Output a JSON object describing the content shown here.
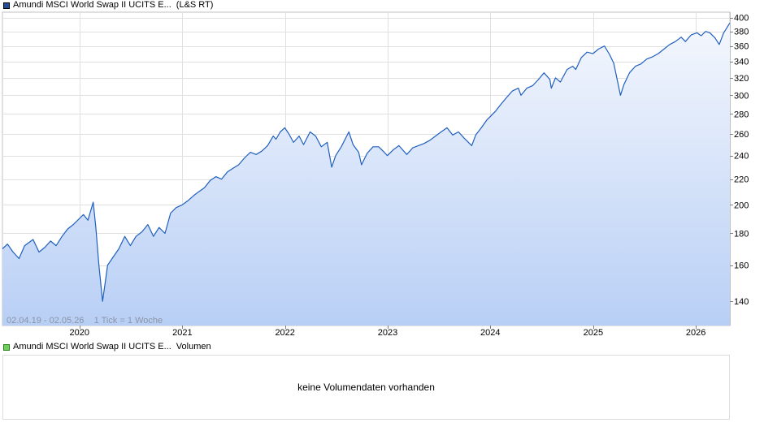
{
  "legend_price": {
    "label": "Amundi MSCI World Swap II UCITS E...",
    "source": "(L&S RT)",
    "color": "#1f4e9c"
  },
  "legend_volume": {
    "label": "Amundi MSCI World Swap II UCITS E...",
    "source": "Volumen",
    "color": "#6fcf5a"
  },
  "info_text": "02.04.19 - 02.05.26    1 Tick = 1 Woche",
  "volume_message": "keine Volumendaten vorhanden",
  "colors": {
    "line": "#1f5fbf",
    "fill_top": "#f4f7fd",
    "fill_bottom": "#b8cff5",
    "grid": "#e0e0e0",
    "axis": "#c0c0c0"
  },
  "chart_data": {
    "type": "area",
    "title": "",
    "xlabel": "",
    "ylabel": "",
    "y_scale": "log",
    "ylim": [
      128,
      408
    ],
    "xlim": [
      "2019-04-02",
      "2026-05-02"
    ],
    "x_ticks": [
      "2020",
      "2021",
      "2022",
      "2023",
      "2024",
      "2025",
      "2026"
    ],
    "x_tick_dates": [
      "2020-01-01",
      "2021-01-01",
      "2022-01-01",
      "2023-01-01",
      "2024-01-01",
      "2025-01-01",
      "2026-01-01"
    ],
    "y_ticks": [
      140,
      160,
      180,
      200,
      220,
      240,
      260,
      280,
      300,
      320,
      340,
      360,
      380,
      400
    ],
    "grid": true,
    "series": [
      {
        "name": "Amundi MSCI World Swap II UCITS E...",
        "points": [
          [
            "2019-04-02",
            170
          ],
          [
            "2019-04-20",
            173
          ],
          [
            "2019-05-10",
            168
          ],
          [
            "2019-05-31",
            164
          ],
          [
            "2019-06-20",
            172
          ],
          [
            "2019-07-20",
            176
          ],
          [
            "2019-08-10",
            168
          ],
          [
            "2019-08-31",
            171
          ],
          [
            "2019-09-20",
            175
          ],
          [
            "2019-10-10",
            172
          ],
          [
            "2019-10-31",
            178
          ],
          [
            "2019-11-20",
            183
          ],
          [
            "2019-12-10",
            186
          ],
          [
            "2019-12-31",
            190
          ],
          [
            "2020-01-15",
            193
          ],
          [
            "2020-01-31",
            189
          ],
          [
            "2020-02-19",
            202
          ],
          [
            "2020-02-28",
            184
          ],
          [
            "2020-03-10",
            160
          ],
          [
            "2020-03-23",
            140
          ],
          [
            "2020-04-10",
            160
          ],
          [
            "2020-04-30",
            165
          ],
          [
            "2020-05-20",
            170
          ],
          [
            "2020-06-10",
            178
          ],
          [
            "2020-06-30",
            172
          ],
          [
            "2020-07-20",
            178
          ],
          [
            "2020-08-10",
            181
          ],
          [
            "2020-08-31",
            186
          ],
          [
            "2020-09-20",
            178
          ],
          [
            "2020-10-10",
            184
          ],
          [
            "2020-10-31",
            180
          ],
          [
            "2020-11-20",
            194
          ],
          [
            "2020-12-10",
            198
          ],
          [
            "2020-12-31",
            200
          ],
          [
            "2021-01-20",
            203
          ],
          [
            "2021-02-10",
            207
          ],
          [
            "2021-02-28",
            210
          ],
          [
            "2021-03-20",
            213
          ],
          [
            "2021-04-10",
            219
          ],
          [
            "2021-04-30",
            222
          ],
          [
            "2021-05-20",
            220
          ],
          [
            "2021-06-10",
            226
          ],
          [
            "2021-06-30",
            229
          ],
          [
            "2021-07-20",
            232
          ],
          [
            "2021-08-10",
            238
          ],
          [
            "2021-08-31",
            243
          ],
          [
            "2021-09-20",
            241
          ],
          [
            "2021-10-10",
            244
          ],
          [
            "2021-10-31",
            249
          ],
          [
            "2021-11-20",
            258
          ],
          [
            "2021-11-30",
            255
          ],
          [
            "2021-12-15",
            262
          ],
          [
            "2021-12-31",
            266
          ],
          [
            "2022-01-15",
            260
          ],
          [
            "2022-01-31",
            252
          ],
          [
            "2022-02-20",
            258
          ],
          [
            "2022-03-08",
            250
          ],
          [
            "2022-03-31",
            262
          ],
          [
            "2022-04-20",
            258
          ],
          [
            "2022-05-10",
            248
          ],
          [
            "2022-05-31",
            252
          ],
          [
            "2022-06-16",
            230
          ],
          [
            "2022-06-30",
            240
          ],
          [
            "2022-07-20",
            248
          ],
          [
            "2022-08-16",
            262
          ],
          [
            "2022-08-31",
            250
          ],
          [
            "2022-09-20",
            243
          ],
          [
            "2022-09-30",
            232
          ],
          [
            "2022-10-20",
            242
          ],
          [
            "2022-11-10",
            248
          ],
          [
            "2022-11-30",
            248
          ],
          [
            "2022-12-20",
            243
          ],
          [
            "2022-12-31",
            240
          ],
          [
            "2023-01-20",
            245
          ],
          [
            "2023-02-10",
            249
          ],
          [
            "2023-03-10",
            241
          ],
          [
            "2023-03-31",
            247
          ],
          [
            "2023-04-20",
            249
          ],
          [
            "2023-05-10",
            251
          ],
          [
            "2023-05-31",
            254
          ],
          [
            "2023-06-20",
            258
          ],
          [
            "2023-07-10",
            262
          ],
          [
            "2023-07-31",
            266
          ],
          [
            "2023-08-20",
            259
          ],
          [
            "2023-09-10",
            262
          ],
          [
            "2023-09-30",
            256
          ],
          [
            "2023-10-27",
            249
          ],
          [
            "2023-11-10",
            259
          ],
          [
            "2023-11-30",
            266
          ],
          [
            "2023-12-20",
            274
          ],
          [
            "2023-12-31",
            277
          ],
          [
            "2024-01-20",
            283
          ],
          [
            "2024-02-10",
            291
          ],
          [
            "2024-02-29",
            298
          ],
          [
            "2024-03-20",
            305
          ],
          [
            "2024-04-10",
            308
          ],
          [
            "2024-04-19",
            300
          ],
          [
            "2024-05-10",
            308
          ],
          [
            "2024-05-31",
            311
          ],
          [
            "2024-06-20",
            318
          ],
          [
            "2024-07-10",
            326
          ],
          [
            "2024-07-31",
            318
          ],
          [
            "2024-08-05",
            308
          ],
          [
            "2024-08-20",
            320
          ],
          [
            "2024-09-06",
            315
          ],
          [
            "2024-09-30",
            330
          ],
          [
            "2024-10-20",
            334
          ],
          [
            "2024-10-31",
            330
          ],
          [
            "2024-11-20",
            345
          ],
          [
            "2024-12-10",
            352
          ],
          [
            "2024-12-31",
            350
          ],
          [
            "2025-01-20",
            356
          ],
          [
            "2025-02-10",
            360
          ],
          [
            "2025-02-28",
            349
          ],
          [
            "2025-03-15",
            338
          ],
          [
            "2025-04-08",
            300
          ],
          [
            "2025-04-20",
            312
          ],
          [
            "2025-05-10",
            326
          ],
          [
            "2025-05-31",
            334
          ],
          [
            "2025-06-20",
            337
          ],
          [
            "2025-07-10",
            343
          ],
          [
            "2025-07-31",
            346
          ],
          [
            "2025-08-20",
            350
          ],
          [
            "2025-09-10",
            356
          ],
          [
            "2025-09-30",
            362
          ],
          [
            "2025-10-20",
            366
          ],
          [
            "2025-11-10",
            372
          ],
          [
            "2025-11-25",
            366
          ],
          [
            "2025-12-15",
            375
          ],
          [
            "2026-01-05",
            378
          ],
          [
            "2026-01-20",
            374
          ],
          [
            "2026-02-05",
            380
          ],
          [
            "2026-02-20",
            378
          ],
          [
            "2026-03-10",
            371
          ],
          [
            "2026-03-25",
            362
          ],
          [
            "2026-04-10",
            378
          ],
          [
            "2026-05-02",
            392
          ]
        ]
      }
    ]
  }
}
